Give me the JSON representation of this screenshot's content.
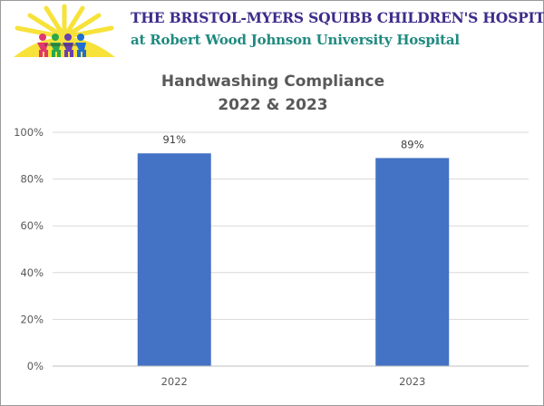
{
  "banner": {
    "line1": "THE BRISTOL-MYERS SQUIBB CHILDREN'S HOSPITAL",
    "line2": "at Robert Wood Johnson University Hospital"
  },
  "logo": {
    "icon": "sun-with-children-logo"
  },
  "colors": {
    "bar": "#4472C4",
    "grid": "#d9d9d9",
    "title": "#595959",
    "banner_title": "#3d2b8a",
    "banner_subtitle": "#1f8a80"
  },
  "chart_data": {
    "type": "bar",
    "title_line1": "Handwashing Compliance",
    "title_line2": "2022 & 2023",
    "categories": [
      "2022",
      "2023"
    ],
    "values": [
      91,
      89
    ],
    "data_labels": [
      "91%",
      "89%"
    ],
    "ylim": [
      0,
      100
    ],
    "yticks": [
      0,
      20,
      40,
      60,
      80,
      100
    ],
    "ytick_labels": [
      "0%",
      "20%",
      "40%",
      "60%",
      "80%",
      "100%"
    ],
    "grid": true,
    "legend": "none"
  }
}
